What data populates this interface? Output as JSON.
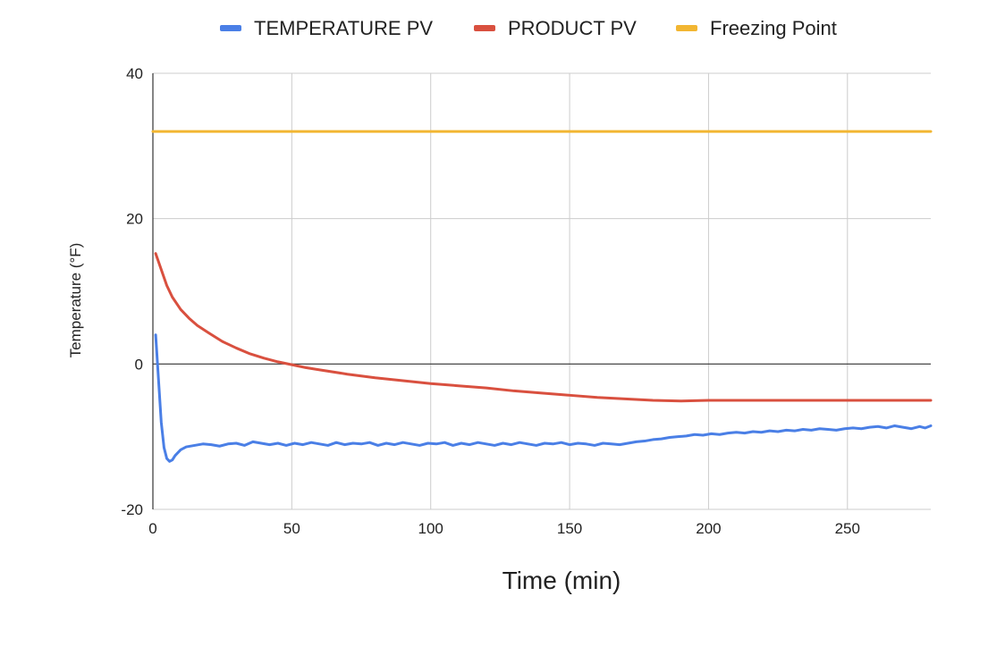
{
  "chart_data": {
    "type": "line",
    "title": "",
    "xlabel": "Time (min)",
    "ylabel": "Temperature (°F)",
    "xlim": [
      0,
      280
    ],
    "ylim": [
      -20,
      40
    ],
    "x_ticks": [
      0,
      50,
      100,
      150,
      200,
      250
    ],
    "y_ticks": [
      -20,
      0,
      20,
      40
    ],
    "x_tick_labels": [
      "0",
      "50",
      "100",
      "150",
      "200",
      "250"
    ],
    "y_tick_labels": [
      "-20",
      "0",
      "20",
      "40"
    ],
    "grid": true,
    "legend_position": "top-center",
    "series": [
      {
        "name": "TEMPERATURE PV",
        "color": "#4a7fe6",
        "x": [
          1,
          2,
          3,
          4,
          5,
          6,
          7,
          8,
          10,
          12,
          15,
          18,
          21,
          24,
          27,
          30,
          33,
          36,
          39,
          42,
          45,
          48,
          51,
          54,
          57,
          60,
          63,
          66,
          69,
          72,
          75,
          78,
          81,
          84,
          87,
          90,
          93,
          96,
          99,
          102,
          105,
          108,
          111,
          114,
          117,
          120,
          123,
          126,
          129,
          132,
          135,
          138,
          141,
          144,
          147,
          150,
          153,
          156,
          159,
          162,
          165,
          168,
          171,
          174,
          177,
          180,
          183,
          186,
          189,
          192,
          195,
          198,
          201,
          204,
          207,
          210,
          213,
          216,
          219,
          222,
          225,
          228,
          231,
          234,
          237,
          240,
          243,
          246,
          249,
          252,
          255,
          258,
          261,
          264,
          267,
          270,
          273,
          276,
          278,
          280
        ],
        "values": [
          4,
          -2,
          -8,
          -11.5,
          -13,
          -13.4,
          -13.2,
          -12.6,
          -11.8,
          -11.4,
          -11.2,
          -11.0,
          -11.1,
          -11.3,
          -11.0,
          -10.9,
          -11.2,
          -10.7,
          -10.9,
          -11.1,
          -10.9,
          -11.2,
          -10.9,
          -11.1,
          -10.8,
          -11.0,
          -11.2,
          -10.8,
          -11.1,
          -10.9,
          -11.0,
          -10.8,
          -11.2,
          -10.9,
          -11.1,
          -10.8,
          -11.0,
          -11.2,
          -10.9,
          -11.0,
          -10.8,
          -11.2,
          -10.9,
          -11.1,
          -10.8,
          -11.0,
          -11.2,
          -10.9,
          -11.1,
          -10.8,
          -11.0,
          -11.2,
          -10.9,
          -11.0,
          -10.8,
          -11.1,
          -10.9,
          -11.0,
          -11.2,
          -10.9,
          -11.0,
          -11.1,
          -10.9,
          -10.7,
          -10.6,
          -10.4,
          -10.3,
          -10.1,
          -10.0,
          -9.9,
          -9.7,
          -9.8,
          -9.6,
          -9.7,
          -9.5,
          -9.4,
          -9.5,
          -9.3,
          -9.4,
          -9.2,
          -9.3,
          -9.1,
          -9.2,
          -9.0,
          -9.1,
          -8.9,
          -9.0,
          -9.1,
          -8.9,
          -8.8,
          -8.9,
          -8.7,
          -8.6,
          -8.8,
          -8.5,
          -8.7,
          -8.9,
          -8.6,
          -8.8,
          -8.5
        ]
      },
      {
        "name": "PRODUCT PV",
        "color": "#d9503f",
        "x": [
          1,
          3,
          5,
          7,
          10,
          13,
          16,
          20,
          25,
          30,
          35,
          40,
          45,
          50,
          55,
          60,
          70,
          80,
          90,
          100,
          110,
          120,
          130,
          140,
          150,
          160,
          170,
          180,
          190,
          200,
          210,
          220,
          230,
          240,
          250,
          260,
          270,
          280
        ],
        "values": [
          15.2,
          13,
          10.8,
          9.2,
          7.5,
          6.3,
          5.3,
          4.3,
          3.1,
          2.2,
          1.4,
          0.8,
          0.3,
          -0.1,
          -0.5,
          -0.8,
          -1.4,
          -1.9,
          -2.3,
          -2.7,
          -3.0,
          -3.3,
          -3.7,
          -4.0,
          -4.3,
          -4.6,
          -4.8,
          -5.0,
          -5.1,
          -5.0,
          -5.0,
          -5.0,
          -5.0,
          -5.0,
          -5.0,
          -5.0,
          -5.0,
          -5.0
        ]
      },
      {
        "name": "Freezing Point",
        "color": "#f2b632",
        "x": [
          0,
          280
        ],
        "values": [
          32,
          32
        ]
      }
    ]
  }
}
